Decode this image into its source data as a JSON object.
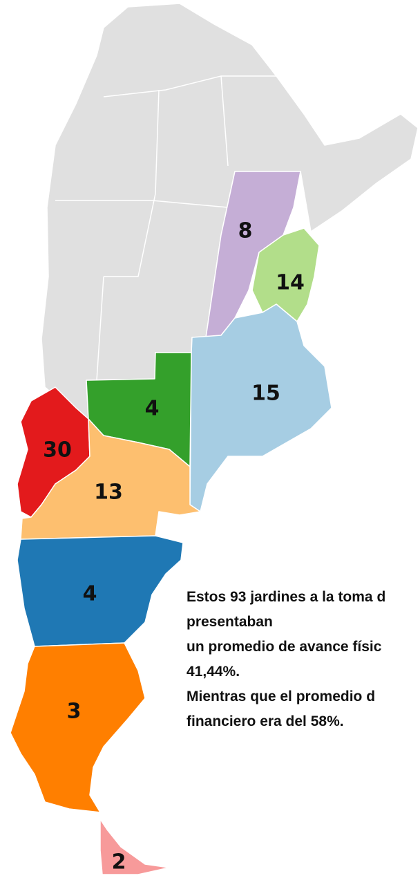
{
  "map": {
    "regions": [
      {
        "label": "8",
        "color": "#c5aed6"
      },
      {
        "label": "14",
        "color": "#b2de8a"
      },
      {
        "label": "15",
        "color": "#a6cde3"
      },
      {
        "label": "4",
        "color": "#34a02b"
      },
      {
        "label": "30",
        "color": "#e31a1c"
      },
      {
        "label": "13",
        "color": "#fdbf6f"
      },
      {
        "label": "4",
        "color": "#1f78b4"
      },
      {
        "label": "3",
        "color": "#ff7f00"
      },
      {
        "label": "2",
        "color": "#f79a9a"
      }
    ],
    "base_color": "#e0e0e0",
    "note": [
      "Estos 93 jardines a la toma d",
      "presentaban",
      "un promedio de avance físic",
      "41,44%.",
      "Mientras que el promedio d",
      "financiero era del 58%."
    ]
  }
}
